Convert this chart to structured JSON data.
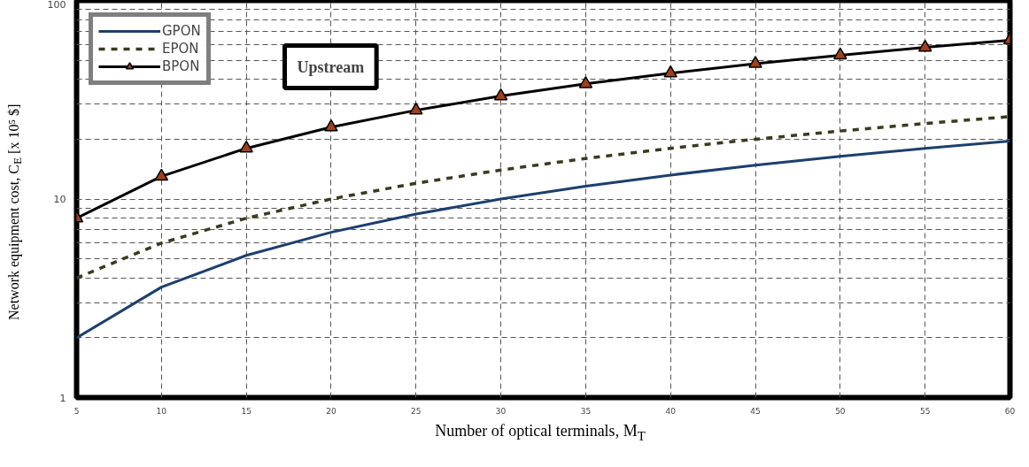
{
  "chart_data": {
    "type": "line",
    "xlabel": "Number of optical terminals, M$_{T}$",
    "ylabel": "Network equipment cost, C$_{E}$ [x 10⁵ $]",
    "annotations": [
      "Upstream"
    ],
    "x": [
      5,
      10,
      15,
      20,
      25,
      30,
      35,
      40,
      45,
      50,
      55,
      60
    ],
    "series": [
      {
        "name": "GPON",
        "color": "#1c3f6e",
        "line_style": "solid",
        "marker": "none",
        "values": [
          2,
          3.6,
          5.2,
          6.8,
          8.4,
          10,
          11.6,
          13.2,
          14.8,
          16.4,
          18,
          19.6
        ]
      },
      {
        "name": "EPON",
        "color": "#3b3a1e",
        "line_style": "dashed",
        "marker": "none",
        "values": [
          4,
          6,
          8,
          10,
          12,
          14,
          16,
          18,
          20,
          22,
          24,
          26
        ]
      },
      {
        "name": "BPON",
        "color": "#000000",
        "line_style": "solid",
        "marker": "triangle",
        "values": [
          8,
          13,
          18,
          23,
          28,
          33,
          38,
          43,
          48,
          53,
          58,
          63
        ]
      }
    ],
    "log": "y",
    "xlim": [
      5,
      60
    ],
    "ylim": [
      1,
      100
    ],
    "xticks": [
      5,
      10,
      15,
      20,
      25,
      30,
      35,
      40,
      45,
      50,
      55,
      60
    ],
    "yticks": [
      1,
      10,
      100
    ],
    "grid": true,
    "legend": "top left"
  }
}
